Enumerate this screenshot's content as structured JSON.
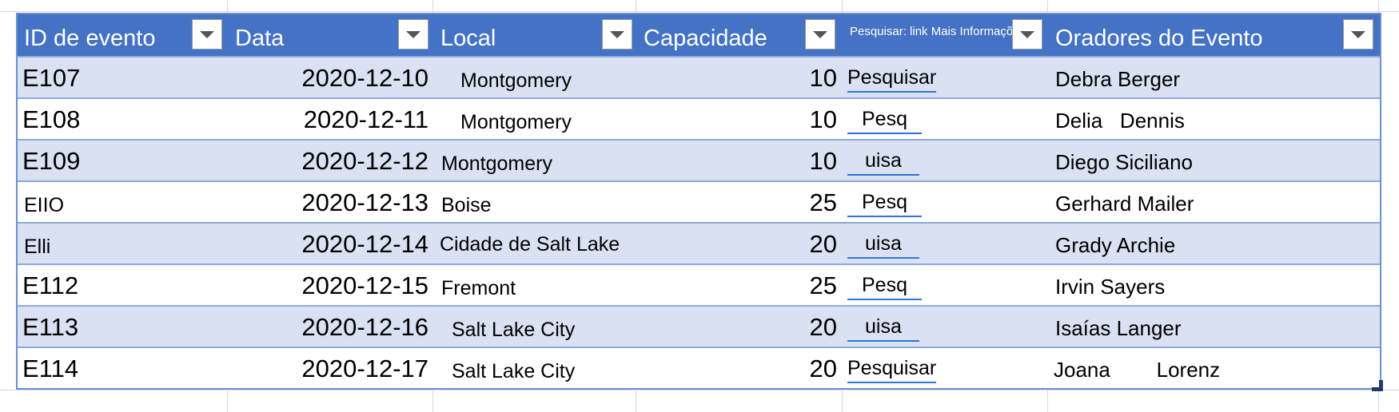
{
  "table": {
    "headers": [
      {
        "label": "ID de evento"
      },
      {
        "label": "Data"
      },
      {
        "label": "Local"
      },
      {
        "label": "Capacidade"
      },
      {
        "label": "Pesquisar: link Mais Informações"
      },
      {
        "label": "Oradores do Evento"
      }
    ],
    "rows": [
      {
        "id": "E107",
        "date": "2020-12-10",
        "local": "Montgomery",
        "capacity": "10",
        "link": "Pesquisar",
        "speaker": "Debra Berger"
      },
      {
        "id": "E108",
        "date": "2020-12-11",
        "local": "Montgomery",
        "capacity": "10",
        "link": "Pesq",
        "speaker": "Delia   Dennis"
      },
      {
        "id": "E109",
        "date": "2020-12-12",
        "local": "Montgomery",
        "capacity": "10",
        "link": "uisa",
        "speaker": "Diego Siciliano"
      },
      {
        "id": "EIIO",
        "date": "2020-12-13",
        "local": "Boise",
        "capacity": "25",
        "link": "Pesq",
        "speaker": "Gerhard Mailer"
      },
      {
        "id": "Elli",
        "date": "2020-12-14",
        "local": "Cidade de Salt Lake",
        "capacity": "20",
        "link": "uisa",
        "speaker": "Grady Archie"
      },
      {
        "id": "E112",
        "date": "2020-12-15",
        "local": "Fremont",
        "capacity": "25",
        "link": "Pesq",
        "speaker": "Irvin Sayers"
      },
      {
        "id": "E113",
        "date": "2020-12-16",
        "local": "Salt Lake City",
        "capacity": "20",
        "link": "uisa",
        "speaker": "Isaías Langer"
      },
      {
        "id": "E114",
        "date": "2020-12-17",
        "local": "Salt Lake City",
        "capacity": "20",
        "link": "Pesquisar",
        "speaker": "Joana        Lorenz"
      }
    ]
  },
  "colors": {
    "header_bg": "#4472c4",
    "band_bg": "#d9e1f2",
    "border": "#8eaadb",
    "link_underline": "#2e75d6"
  },
  "icons": {
    "filter_dropdown": "chevron-down-icon",
    "resize_handle": "table-resize-icon"
  }
}
